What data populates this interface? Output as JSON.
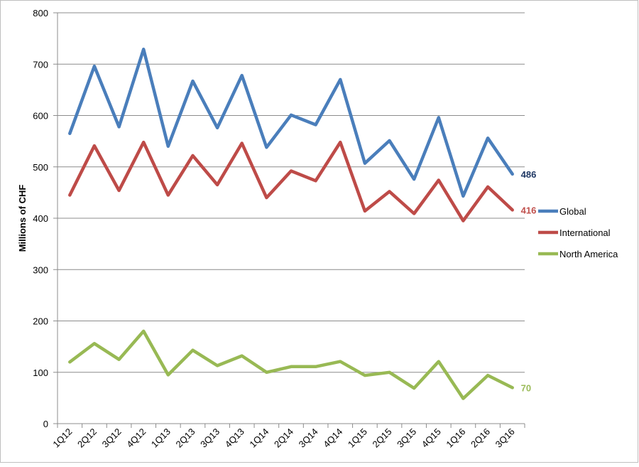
{
  "chart_data": {
    "type": "line",
    "title": "",
    "xlabel": "",
    "ylabel": "Millions of CHF",
    "ylim": [
      0,
      800
    ],
    "yticks": [
      0,
      100,
      200,
      300,
      400,
      500,
      600,
      700,
      800
    ],
    "grid": true,
    "legend_position": "right",
    "categories": [
      "1Q12",
      "2Q12",
      "3Q12",
      "4Q12",
      "1Q13",
      "2Q13",
      "3Q13",
      "4Q13",
      "1Q14",
      "2Q14",
      "3Q14",
      "4Q14",
      "1Q15",
      "2Q15",
      "3Q15",
      "4Q15",
      "1Q16",
      "2Q16",
      "3Q16"
    ],
    "series": [
      {
        "name": "Global",
        "color": "#4a7ebb",
        "label_color": "#1f3864",
        "values": [
          565,
          696,
          578,
          729,
          540,
          667,
          576,
          678,
          538,
          601,
          582,
          670,
          507,
          551,
          476,
          596,
          443,
          556,
          486
        ],
        "end_label": "486"
      },
      {
        "name": "International",
        "color": "#be4b48",
        "label_color": "#c0504d",
        "values": [
          445,
          541,
          454,
          548,
          445,
          522,
          465,
          546,
          440,
          492,
          473,
          548,
          414,
          452,
          409,
          474,
          395,
          461,
          416
        ],
        "end_label": "416"
      },
      {
        "name": "North America",
        "color": "#98b954",
        "label_color": "#9bbb59",
        "values": [
          120,
          156,
          125,
          180,
          95,
          143,
          113,
          132,
          100,
          111,
          111,
          121,
          94,
          100,
          69,
          121,
          49,
          94,
          70
        ],
        "end_label": "70"
      }
    ]
  }
}
